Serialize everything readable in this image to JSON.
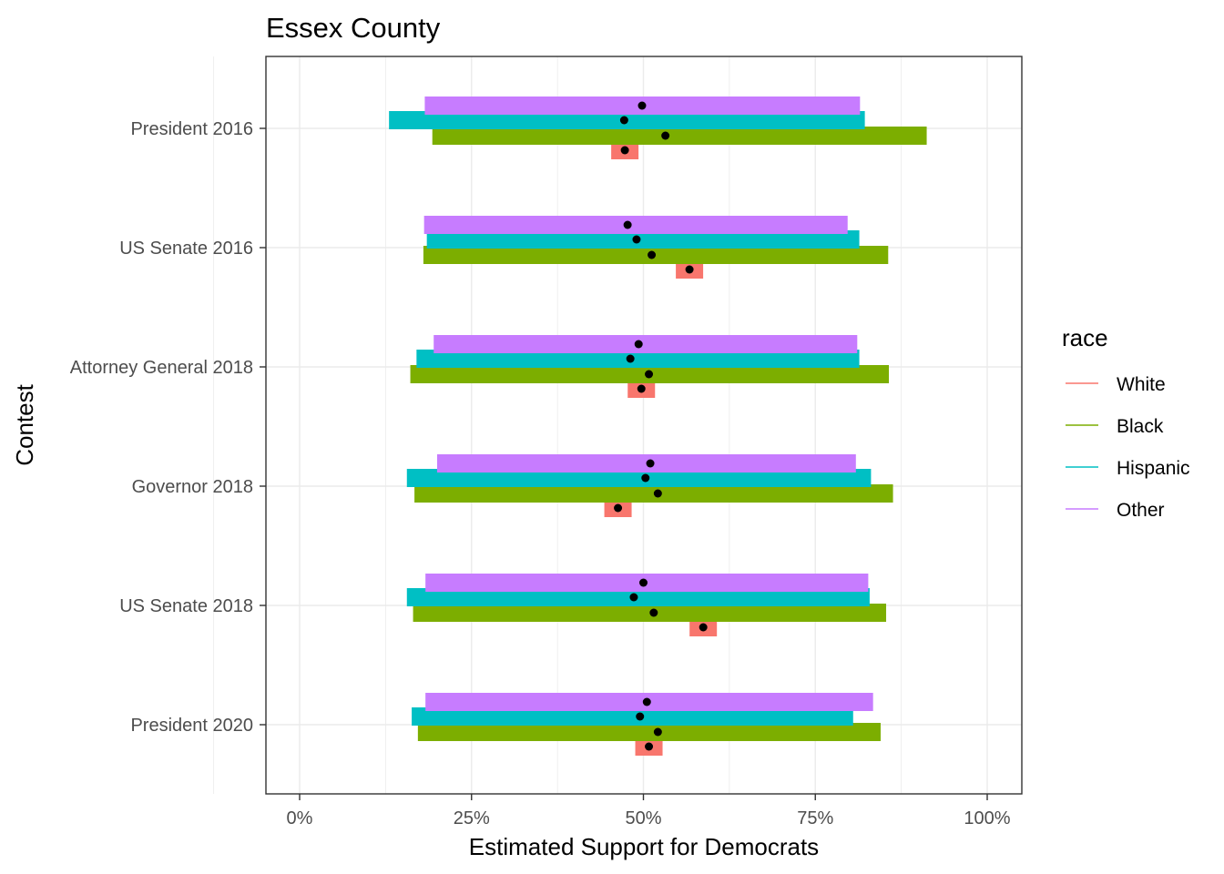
{
  "chart_data": {
    "type": "bar",
    "title": "Essex County",
    "xlabel": "Estimated Support for Democrats",
    "ylabel": "Contest",
    "xlim": [
      -0.1,
      2.1
    ],
    "xticks": [
      {
        "value": 0,
        "label": "0%"
      },
      {
        "value": 0.25,
        "label": "25%"
      },
      {
        "value": 0.5,
        "label": "50%"
      },
      {
        "value": 0.75,
        "label": "75%"
      },
      {
        "value": 1.0,
        "label": "100%"
      }
    ],
    "grid": true,
    "legend": {
      "title": "race",
      "position": "right"
    },
    "categories": [
      "President 2016",
      "US Senate 2016",
      "Attorney General 2018",
      "Governor 2018",
      "US Senate 2018",
      "President 2020"
    ],
    "series": [
      {
        "name": "White",
        "color": "#F8766D",
        "values": [
          [
            0.453,
            0.493,
            0.473
          ],
          [
            0.545,
            0.585,
            0.567
          ],
          [
            0.476,
            0.518,
            0.497
          ],
          [
            0.443,
            0.485,
            0.463
          ],
          [
            0.564,
            0.607,
            0.587
          ],
          [
            0.489,
            0.53,
            0.508
          ]
        ]
      },
      {
        "name": "Black",
        "color": "#7CAE00",
        "values": [
          [
            0.193,
            0.912,
            0.532
          ],
          [
            0.18,
            0.856,
            0.512
          ],
          [
            0.161,
            0.857,
            0.508
          ],
          [
            0.167,
            0.863,
            0.521
          ],
          [
            0.165,
            0.853,
            0.515
          ],
          [
            0.172,
            0.845,
            0.521
          ]
        ]
      },
      {
        "name": "Hispanic",
        "color": "#00BFC4",
        "values": [
          [
            0.13,
            0.822,
            0.472
          ],
          [
            0.185,
            0.814,
            0.49
          ],
          [
            0.17,
            0.814,
            0.481
          ],
          [
            0.156,
            0.831,
            0.503
          ],
          [
            0.156,
            0.829,
            0.486
          ],
          [
            0.163,
            0.805,
            0.495
          ]
        ]
      },
      {
        "name": "Other",
        "color": "#C77CFF",
        "values": [
          [
            0.182,
            0.815,
            0.498
          ],
          [
            0.181,
            0.797,
            0.477
          ],
          [
            0.195,
            0.811,
            0.493
          ],
          [
            0.2,
            0.809,
            0.51
          ],
          [
            0.183,
            0.827,
            0.5
          ],
          [
            0.183,
            0.834,
            0.505
          ]
        ]
      }
    ]
  }
}
